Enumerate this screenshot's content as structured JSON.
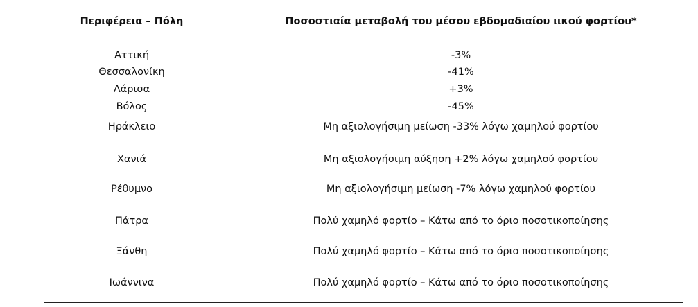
{
  "table": {
    "header": [
      "Περιφέρεια – Πόλη",
      "Ποσοστιαία μεταβολή του μέσου εβδομαδιαίου ιικού φορτίου*"
    ],
    "rows": [
      [
        "Αττική",
        "-3%"
      ],
      [
        "Θεσσαλονίκη",
        "-41%"
      ],
      [
        "Λάρισα",
        "+3%"
      ],
      [
        "Βόλος",
        "-45%"
      ],
      [
        "Ηράκλειο",
        "Μη αξιολογήσιμη μείωση -33% λόγω χαμηλού φορτίου"
      ],
      [
        "Χανιά",
        "Μη αξιολογήσιμη αύξηση +2% λόγω χαμηλού φορτίου"
      ],
      [
        "Ρέθυμνο",
        "Μη αξιολογήσιμη μείωση -7% λόγω χαμηλού φορτίου"
      ],
      [
        "Πάτρα",
        "Πολύ χαμηλό φορτίο – Κάτω από το όριο ποσοτικοποίησης"
      ],
      [
        "Ξάνθη",
        "Πολύ χαμηλό φορτίο – Κάτω από το όριο ποσοτικοποίησης"
      ],
      [
        "Ιωάννινα",
        "Πολύ χαμηλό φορτίο – Κάτω από το όριο ποσοτικοποίησης"
      ]
    ]
  }
}
